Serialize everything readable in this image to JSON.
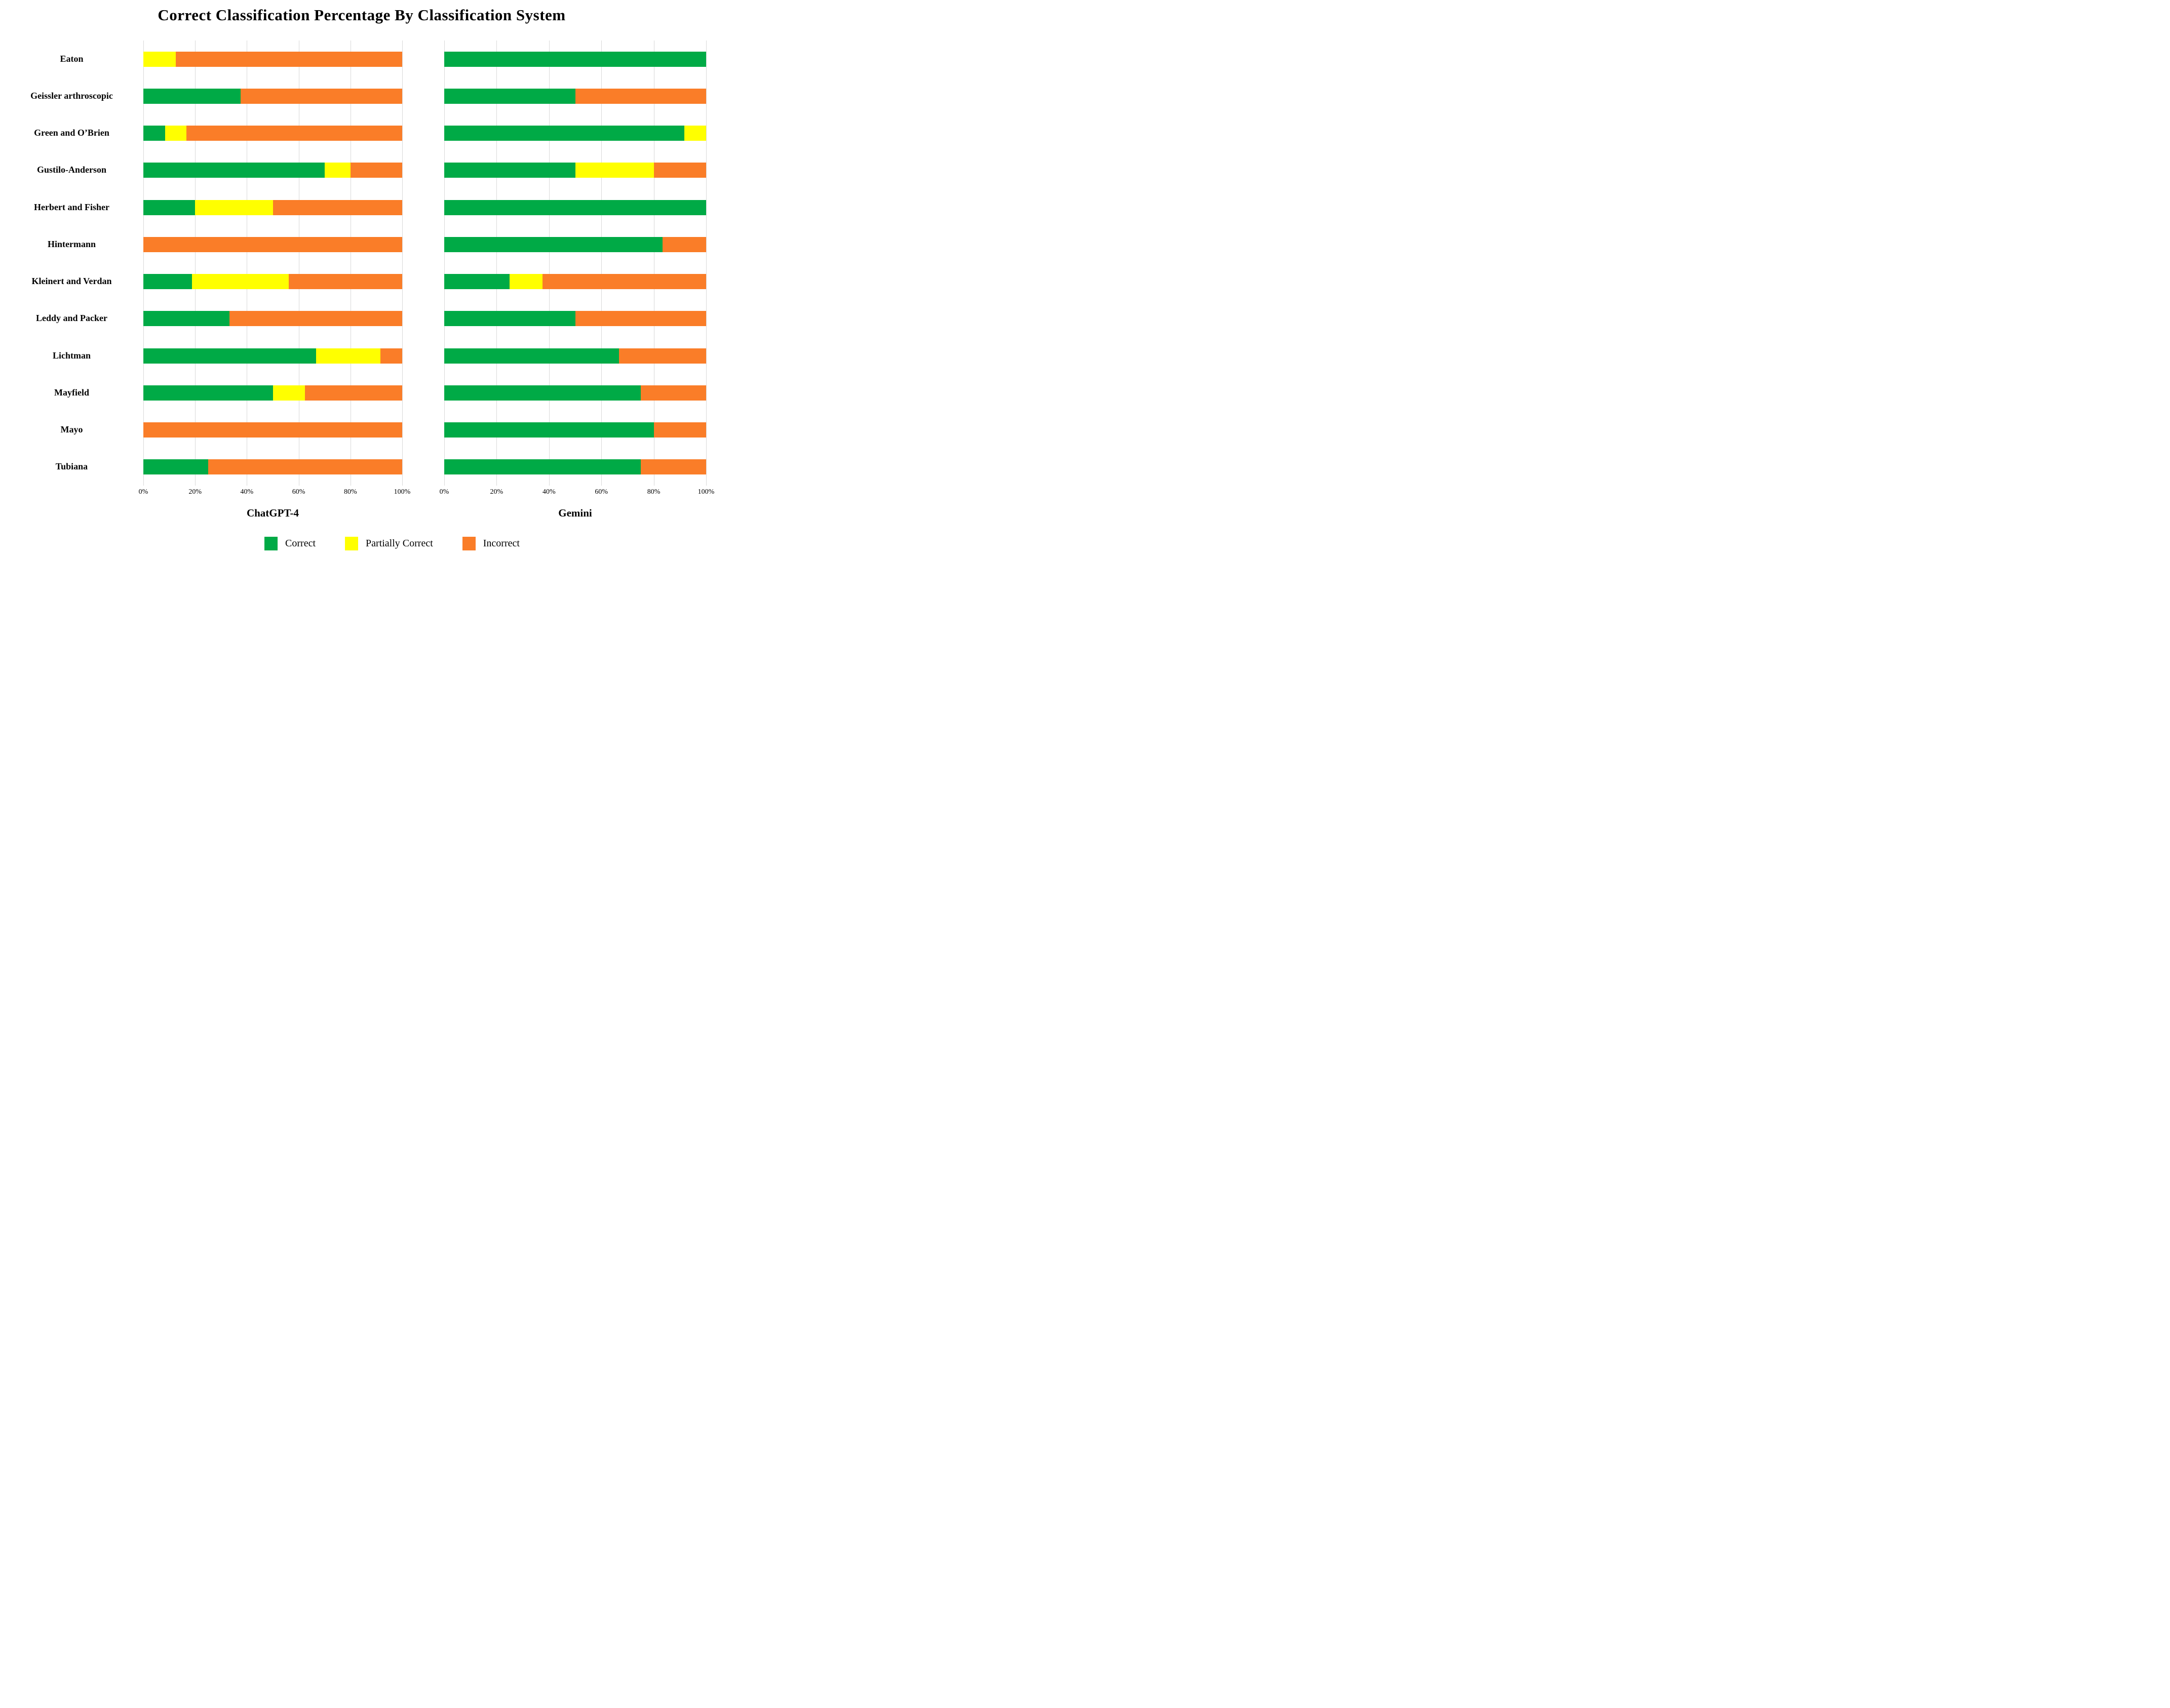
{
  "title": "Correct Classification Percentage By Classification System",
  "colors": {
    "correct": "#00AA46",
    "partially_correct": "#FFFF00",
    "incorrect": "#FA7D28",
    "gridline": "#D9D9D9",
    "text": "#000000"
  },
  "legend": [
    {
      "label": "Correct",
      "color": "#00AA46"
    },
    {
      "label": "Partially Correct",
      "color": "#FFFF00"
    },
    {
      "label": "Incorrect",
      "color": "#FA7D28"
    }
  ],
  "chart_data": {
    "type": "bar",
    "orientation": "horizontal",
    "stacked": true,
    "grid": true,
    "xlim": [
      0,
      100
    ],
    "x_ticks": [
      "0%",
      "20%",
      "40%",
      "60%",
      "80%",
      "100%"
    ],
    "title": "Correct Classification Percentage By Classification System",
    "categories": [
      "Eaton",
      "Geissler arthroscopic",
      "Green and O’Brien",
      "Gustilo-Anderson",
      "Herbert and Fisher",
      "Hintermann",
      "Kleinert and Verdan",
      "Leddy and Packer",
      "Lichtman",
      "Mayfield",
      "Mayo",
      "Tubiana"
    ],
    "series_labels": [
      "Correct",
      "Partially Correct",
      "Incorrect"
    ],
    "panels": [
      {
        "name": "ChatGPT-4",
        "values": [
          [
            0,
            12.5,
            87.5
          ],
          [
            37.5,
            0,
            62.5
          ],
          [
            8.33,
            8.33,
            83.34
          ],
          [
            70,
            10,
            20
          ],
          [
            20,
            30,
            50
          ],
          [
            0,
            0,
            100
          ],
          [
            18.75,
            37.5,
            43.75
          ],
          [
            33.33,
            0,
            66.67
          ],
          [
            66.67,
            25,
            8.33
          ],
          [
            50,
            12.5,
            37.5
          ],
          [
            0,
            0,
            100
          ],
          [
            25,
            0,
            75
          ]
        ]
      },
      {
        "name": "Gemini",
        "values": [
          [
            100,
            0,
            0
          ],
          [
            50,
            0,
            50
          ],
          [
            91.67,
            8.33,
            0
          ],
          [
            50,
            30,
            20
          ],
          [
            100,
            0,
            0
          ],
          [
            83.33,
            0,
            16.67
          ],
          [
            25,
            12.5,
            62.5
          ],
          [
            50,
            0,
            50
          ],
          [
            66.67,
            0,
            33.33
          ],
          [
            75,
            0,
            25
          ],
          [
            80,
            0,
            20
          ],
          [
            75,
            0,
            25
          ]
        ]
      }
    ]
  }
}
